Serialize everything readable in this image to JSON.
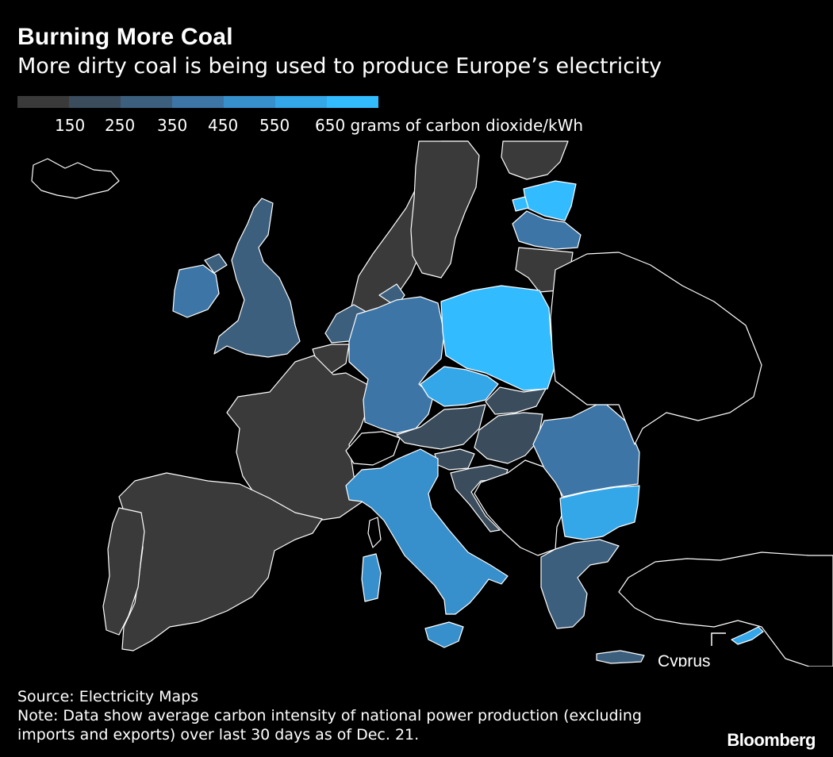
{
  "header": {
    "title": "Burning More Coal",
    "subtitle": "More dirty coal is being used to produce Europe’s electricity"
  },
  "legend": {
    "colors": [
      "#3a3a3a",
      "#3b4c5c",
      "#3d5f7e",
      "#3d76a6",
      "#3790cc",
      "#34a7e8",
      "#33bbff"
    ],
    "ticks": [
      "150",
      "250",
      "350",
      "450",
      "550",
      "650 grams of carbon dioxide/kWh"
    ]
  },
  "map": {
    "label_cyprus": "Cyprus",
    "regions": {
      "Norway": 0,
      "Sweden": 0,
      "Finland": 0,
      "Estonia": 6,
      "Latvia": 3,
      "Lithuania": 0,
      "United Kingdom": 2,
      "Ireland": 3,
      "Netherlands": 2,
      "Belgium": 0,
      "France": 0,
      "Germany": 3,
      "Denmark": 2,
      "Poland": 6,
      "Czechia": 5,
      "Slovakia": 1,
      "Austria": 1,
      "Switzerland": "none",
      "Hungary": 1,
      "Slovenia": 1,
      "Croatia": 1,
      "Italy": 4,
      "Spain": 0,
      "Portugal": 0,
      "Romania": 3,
      "Bulgaria": 5,
      "Greece": 2,
      "Cyprus": 5
    }
  },
  "footer": {
    "source": "Source: Electricity Maps",
    "note_line1": "Note: Data show average carbon intensity of national power production (excluding",
    "note_line2": "imports and exports) over last 30 days as of Dec. 21."
  },
  "brand": "Bloomberg"
}
